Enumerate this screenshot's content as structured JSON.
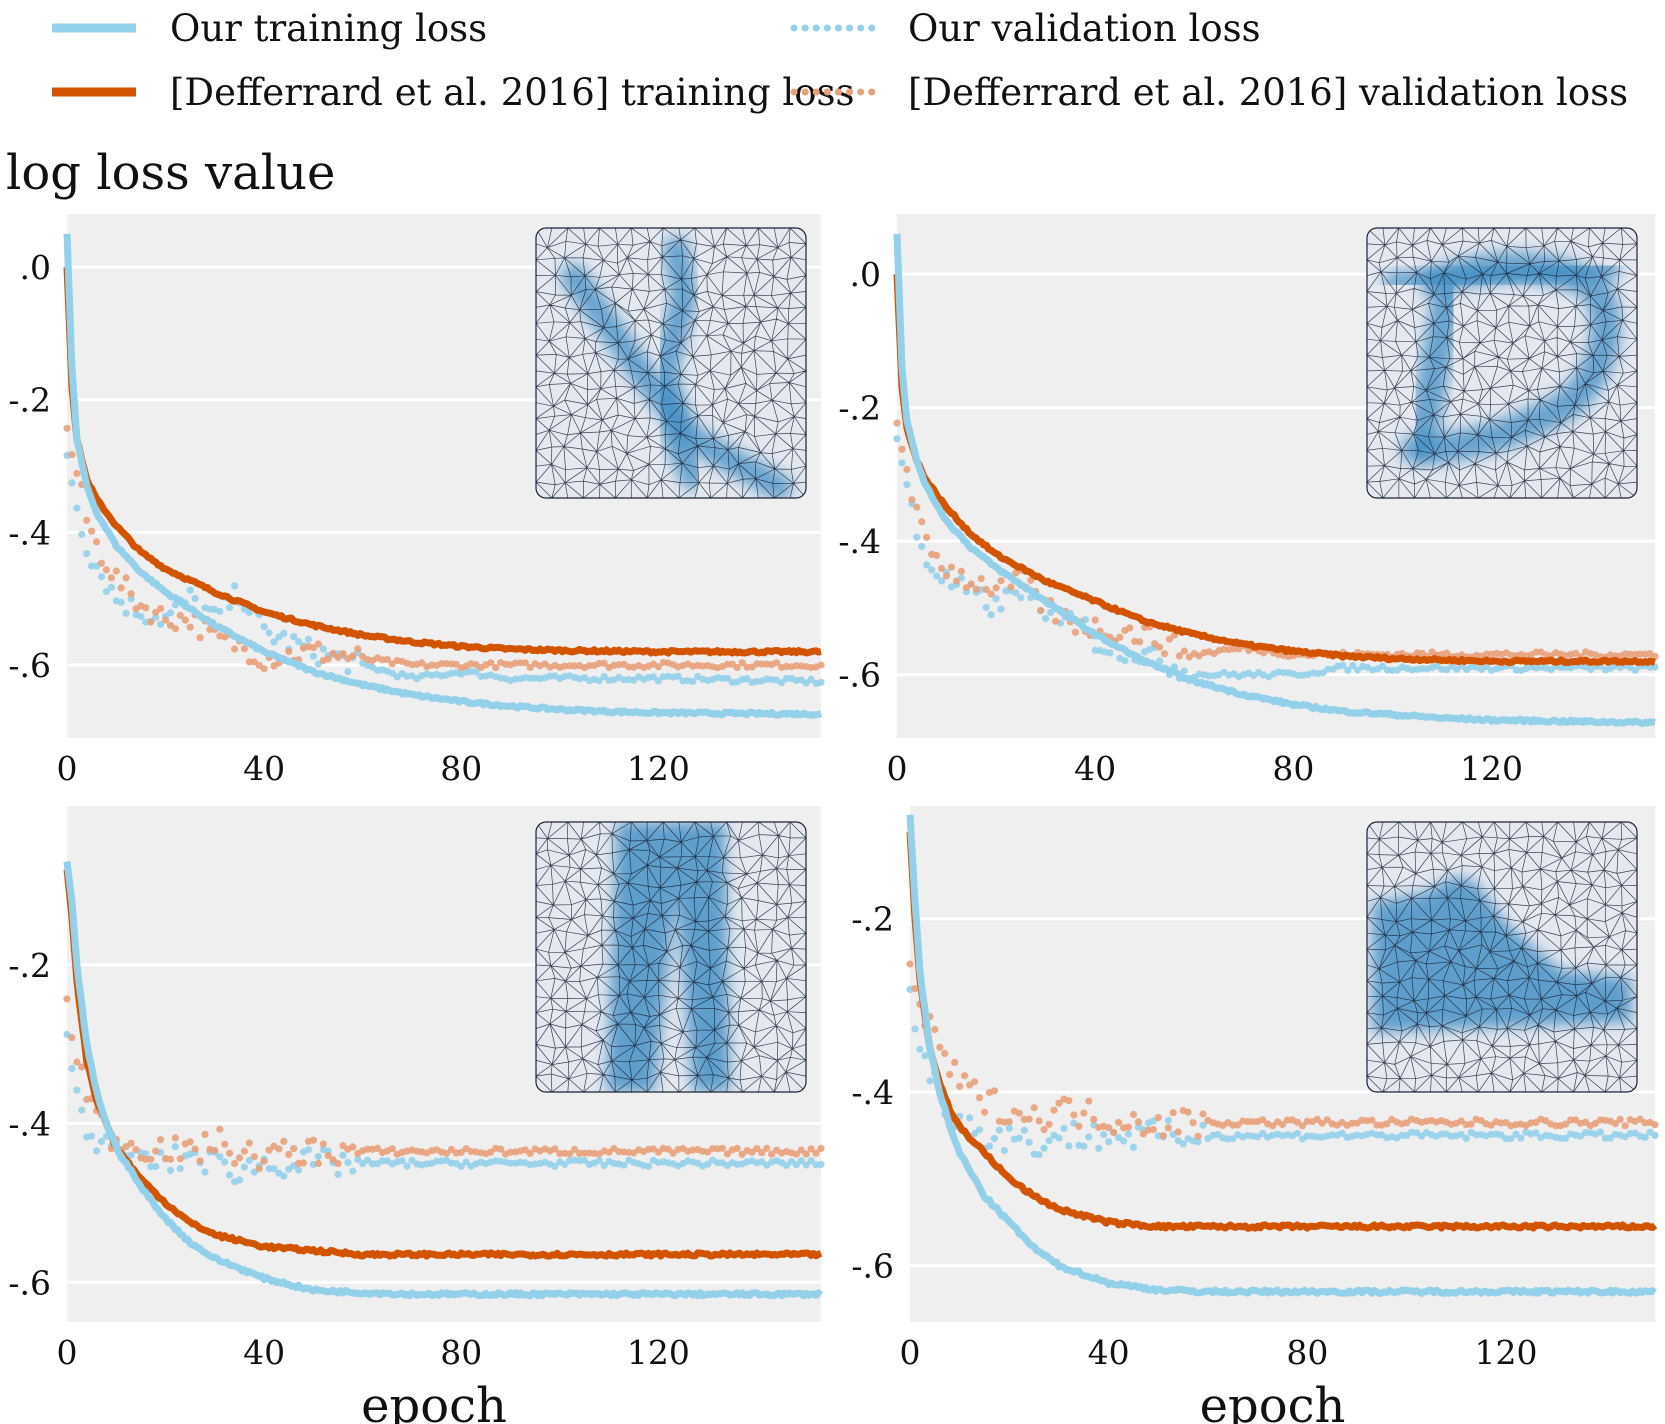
{
  "legend": {
    "our_train": "Our training loss",
    "our_val": "Our validation loss",
    "deff_train": "[Defferrard et al. 2016] training loss",
    "deff_val": "[Defferrard et al. 2016] validation loss"
  },
  "ylabel": "log loss value",
  "colors": {
    "our": "#93d0ea",
    "deff": "#d35400",
    "deff_val": "#e8a07a",
    "panel_bg": "#efefef",
    "mesh_blue": "#3d8cc4"
  },
  "chart_data": [
    {
      "type": "line",
      "panel": "top-left",
      "inset_icon": "mesh-digit-icon",
      "xlabel": "",
      "xlim": [
        0,
        153
      ],
      "ylim": [
        -0.71,
        0.08
      ],
      "xticks": [
        0,
        40,
        80,
        120
      ],
      "xtick_labels": [
        "0",
        "40",
        "80",
        "120"
      ],
      "yticks": [
        0.0,
        -0.2,
        -0.4,
        -0.6
      ],
      "ytick_labels": [
        ".0",
        "-.2",
        "-.4",
        "-.6"
      ],
      "series": [
        {
          "key": "our_train",
          "style": "solid",
          "x": [
            0,
            1,
            2,
            4,
            6,
            10,
            15,
            20,
            30,
            40,
            50,
            60,
            70,
            80,
            90,
            100,
            110,
            120,
            135,
            153
          ],
          "y": [
            0.05,
            -0.15,
            -0.26,
            -0.33,
            -0.37,
            -0.42,
            -0.46,
            -0.49,
            -0.54,
            -0.58,
            -0.61,
            -0.63,
            -0.645,
            -0.655,
            -0.662,
            -0.667,
            -0.67,
            -0.672,
            -0.673,
            -0.674
          ]
        },
        {
          "key": "deff_train",
          "style": "solid",
          "x": [
            0,
            1,
            2,
            4,
            6,
            10,
            15,
            20,
            30,
            40,
            50,
            60,
            70,
            80,
            90,
            100,
            110,
            120,
            135,
            153
          ],
          "y": [
            0.0,
            -0.18,
            -0.26,
            -0.32,
            -0.35,
            -0.39,
            -0.43,
            -0.455,
            -0.49,
            -0.52,
            -0.54,
            -0.555,
            -0.565,
            -0.572,
            -0.576,
            -0.578,
            -0.579,
            -0.58,
            -0.58,
            -0.58
          ]
        },
        {
          "key": "our_val",
          "style": "dotted",
          "x": [
            0,
            2,
            4,
            6,
            10,
            15,
            20,
            25,
            30,
            35,
            40,
            50,
            60,
            70,
            80,
            90,
            100,
            120,
            153
          ],
          "y": [
            -0.28,
            -0.36,
            -0.42,
            -0.45,
            -0.5,
            -0.52,
            -0.53,
            -0.5,
            -0.53,
            -0.49,
            -0.55,
            -0.58,
            -0.6,
            -0.62,
            -0.61,
            -0.62,
            -0.62,
            -0.62,
            -0.625
          ]
        },
        {
          "key": "deff_val",
          "style": "dotted",
          "x": [
            0,
            2,
            4,
            6,
            10,
            15,
            20,
            25,
            30,
            35,
            40,
            50,
            60,
            70,
            80,
            90,
            100,
            120,
            153
          ],
          "y": [
            -0.25,
            -0.31,
            -0.38,
            -0.42,
            -0.47,
            -0.51,
            -0.53,
            -0.53,
            -0.56,
            -0.57,
            -0.59,
            -0.58,
            -0.59,
            -0.6,
            -0.6,
            -0.6,
            -0.6,
            -0.6,
            -0.6
          ]
        }
      ]
    },
    {
      "type": "line",
      "panel": "top-right",
      "inset_icon": "mesh-digit-icon",
      "xlabel": "",
      "xlim": [
        0,
        153
      ],
      "ylim": [
        -0.695,
        0.09
      ],
      "xticks": [
        0,
        40,
        80,
        120
      ],
      "xtick_labels": [
        "0",
        "40",
        "80",
        "120"
      ],
      "yticks": [
        0.0,
        -0.2,
        -0.4,
        -0.6
      ],
      "ytick_labels": [
        ".0",
        "-.2",
        "-.4",
        "-.6"
      ],
      "series": [
        {
          "key": "our_train",
          "style": "solid",
          "x": [
            0,
            1,
            2,
            4,
            6,
            10,
            15,
            20,
            30,
            40,
            50,
            60,
            70,
            80,
            90,
            100,
            110,
            120,
            135,
            153
          ],
          "y": [
            0.06,
            -0.14,
            -0.22,
            -0.28,
            -0.32,
            -0.37,
            -0.41,
            -0.44,
            -0.49,
            -0.54,
            -0.58,
            -0.61,
            -0.63,
            -0.645,
            -0.655,
            -0.66,
            -0.665,
            -0.668,
            -0.67,
            -0.672
          ]
        },
        {
          "key": "deff_train",
          "style": "solid",
          "x": [
            0,
            1,
            2,
            4,
            6,
            10,
            15,
            20,
            30,
            40,
            50,
            60,
            70,
            80,
            90,
            100,
            110,
            120,
            135,
            153
          ],
          "y": [
            0.0,
            -0.17,
            -0.23,
            -0.28,
            -0.31,
            -0.35,
            -0.39,
            -0.42,
            -0.46,
            -0.49,
            -0.52,
            -0.54,
            -0.555,
            -0.565,
            -0.572,
            -0.576,
            -0.578,
            -0.58,
            -0.58,
            -0.58
          ]
        },
        {
          "key": "our_val",
          "style": "dotted",
          "x": [
            0,
            2,
            4,
            6,
            10,
            15,
            20,
            25,
            30,
            35,
            40,
            50,
            60,
            70,
            80,
            90,
            100,
            120,
            153
          ],
          "y": [
            -0.24,
            -0.32,
            -0.39,
            -0.43,
            -0.46,
            -0.48,
            -0.5,
            -0.47,
            -0.52,
            -0.5,
            -0.55,
            -0.57,
            -0.6,
            -0.6,
            -0.6,
            -0.59,
            -0.59,
            -0.59,
            -0.59
          ]
        },
        {
          "key": "deff_val",
          "style": "dotted",
          "x": [
            0,
            2,
            4,
            6,
            10,
            15,
            20,
            25,
            30,
            35,
            40,
            50,
            60,
            70,
            80,
            90,
            100,
            120,
            153
          ],
          "y": [
            -0.22,
            -0.29,
            -0.36,
            -0.41,
            -0.44,
            -0.46,
            -0.47,
            -0.46,
            -0.5,
            -0.52,
            -0.53,
            -0.54,
            -0.57,
            -0.56,
            -0.57,
            -0.57,
            -0.57,
            -0.57,
            -0.57
          ]
        }
      ]
    },
    {
      "type": "line",
      "panel": "bottom-left",
      "inset_icon": "mesh-trousers-icon",
      "xlabel": "epoch",
      "xlim": [
        0,
        153
      ],
      "ylim": [
        -0.65,
        -0.0
      ],
      "xticks": [
        0,
        40,
        80,
        120
      ],
      "xtick_labels": [
        "0",
        "40",
        "80",
        "120"
      ],
      "yticks": [
        -0.2,
        -0.4,
        -0.6
      ],
      "ytick_labels": [
        "-.2",
        "-.4",
        "-.6"
      ],
      "series": [
        {
          "key": "our_train",
          "style": "solid",
          "x": [
            0,
            1,
            2,
            4,
            6,
            8,
            10,
            15,
            20,
            25,
            30,
            40,
            50,
            60,
            70,
            80,
            90,
            100,
            120,
            153
          ],
          "y": [
            -0.07,
            -0.12,
            -0.2,
            -0.3,
            -0.36,
            -0.4,
            -0.43,
            -0.48,
            -0.52,
            -0.55,
            -0.57,
            -0.595,
            -0.61,
            -0.613,
            -0.615,
            -0.615,
            -0.615,
            -0.615,
            -0.615,
            -0.615
          ]
        },
        {
          "key": "deff_train",
          "style": "solid",
          "x": [
            0,
            1,
            2,
            4,
            6,
            8,
            10,
            15,
            20,
            25,
            30,
            40,
            50,
            60,
            70,
            80,
            90,
            100,
            120,
            153
          ],
          "y": [
            -0.08,
            -0.14,
            -0.22,
            -0.32,
            -0.37,
            -0.4,
            -0.43,
            -0.47,
            -0.5,
            -0.525,
            -0.54,
            -0.555,
            -0.56,
            -0.565,
            -0.565,
            -0.565,
            -0.565,
            -0.565,
            -0.565,
            -0.565
          ]
        },
        {
          "key": "our_val",
          "style": "dotted",
          "x": [
            0,
            2,
            4,
            6,
            8,
            10,
            15,
            20,
            25,
            30,
            35,
            40,
            50,
            60,
            80,
            100,
            120,
            153
          ],
          "y": [
            -0.3,
            -0.36,
            -0.4,
            -0.42,
            -0.43,
            -0.44,
            -0.45,
            -0.45,
            -0.44,
            -0.45,
            -0.46,
            -0.45,
            -0.45,
            -0.45,
            -0.45,
            -0.45,
            -0.45,
            -0.45
          ]
        },
        {
          "key": "deff_val",
          "style": "dotted",
          "x": [
            0,
            2,
            4,
            6,
            8,
            10,
            15,
            20,
            25,
            30,
            35,
            40,
            50,
            60,
            80,
            100,
            120,
            153
          ],
          "y": [
            -0.26,
            -0.31,
            -0.36,
            -0.39,
            -0.41,
            -0.42,
            -0.43,
            -0.43,
            -0.44,
            -0.42,
            -0.44,
            -0.44,
            -0.435,
            -0.435,
            -0.435,
            -0.435,
            -0.435,
            -0.435
          ]
        }
      ]
    },
    {
      "type": "line",
      "panel": "bottom-right",
      "inset_icon": "mesh-boot-icon",
      "xlabel": "epoch",
      "xlim": [
        0,
        150
      ],
      "ylim": [
        -0.665,
        -0.07
      ],
      "xticks": [
        0,
        40,
        80,
        120
      ],
      "xtick_labels": [
        "0",
        "40",
        "80",
        "120"
      ],
      "yticks": [
        -0.2,
        -0.4,
        -0.6
      ],
      "ytick_labels": [
        "-.2",
        "-.4",
        "-.6"
      ],
      "series": [
        {
          "key": "our_train",
          "style": "solid",
          "x": [
            0,
            1,
            2,
            4,
            6,
            8,
            10,
            15,
            20,
            25,
            30,
            40,
            50,
            60,
            70,
            80,
            90,
            100,
            120,
            150
          ],
          "y": [
            -0.08,
            -0.18,
            -0.26,
            -0.35,
            -0.4,
            -0.44,
            -0.47,
            -0.52,
            -0.55,
            -0.58,
            -0.6,
            -0.62,
            -0.628,
            -0.63,
            -0.63,
            -0.63,
            -0.63,
            -0.63,
            -0.63,
            -0.63
          ]
        },
        {
          "key": "deff_train",
          "style": "solid",
          "x": [
            0,
            1,
            2,
            4,
            6,
            8,
            10,
            15,
            20,
            25,
            30,
            40,
            50,
            60,
            70,
            80,
            90,
            100,
            120,
            150
          ],
          "y": [
            -0.1,
            -0.2,
            -0.27,
            -0.35,
            -0.39,
            -0.42,
            -0.44,
            -0.47,
            -0.5,
            -0.52,
            -0.535,
            -0.55,
            -0.555,
            -0.555,
            -0.555,
            -0.555,
            -0.555,
            -0.555,
            -0.555,
            -0.555
          ]
        },
        {
          "key": "our_val",
          "style": "dotted",
          "x": [
            0,
            2,
            4,
            6,
            8,
            10,
            15,
            20,
            25,
            30,
            40,
            50,
            60,
            80,
            100,
            120,
            150
          ],
          "y": [
            -0.28,
            -0.35,
            -0.38,
            -0.4,
            -0.42,
            -0.43,
            -0.45,
            -0.45,
            -0.46,
            -0.45,
            -0.45,
            -0.45,
            -0.45,
            -0.45,
            -0.45,
            -0.45,
            -0.45
          ]
        },
        {
          "key": "deff_val",
          "style": "dotted",
          "x": [
            0,
            2,
            4,
            6,
            8,
            10,
            15,
            20,
            25,
            30,
            40,
            50,
            60,
            80,
            100,
            120,
            150
          ],
          "y": [
            -0.25,
            -0.3,
            -0.33,
            -0.35,
            -0.37,
            -0.39,
            -0.41,
            -0.42,
            -0.43,
            -0.42,
            -0.43,
            -0.435,
            -0.435,
            -0.435,
            -0.435,
            -0.435,
            -0.435
          ]
        }
      ]
    }
  ]
}
